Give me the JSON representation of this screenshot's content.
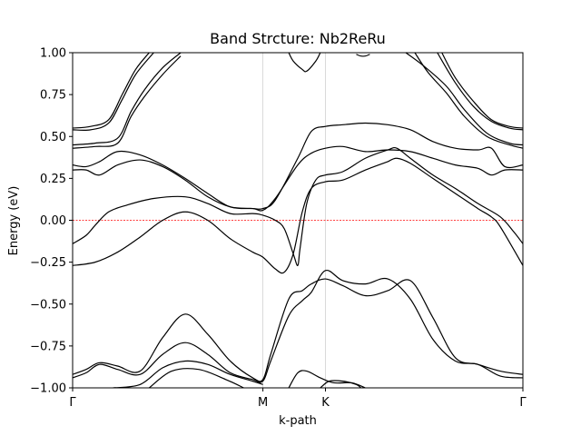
{
  "chart_data": {
    "type": "line",
    "title": "Band Strcture: Nb2ReRu",
    "xlabel": "k-path",
    "ylabel": "Energy (eV)",
    "xlim": [
      0,
      1
    ],
    "ylim": [
      -1.0,
      1.0
    ],
    "yticks": [
      -1.0,
      -0.75,
      -0.5,
      -0.25,
      0.0,
      0.25,
      0.5,
      0.75,
      1.0
    ],
    "ytick_labels": [
      "−1.00",
      "−0.75",
      "−0.50",
      "−0.25",
      "0.00",
      "0.25",
      "0.50",
      "0.75",
      "1.00"
    ],
    "high_symmetry_points": [
      {
        "label": "Γ",
        "x": 0.0
      },
      {
        "label": "M",
        "x": 0.4226
      },
      {
        "label": "K",
        "x": 0.5615
      },
      {
        "label": "Γ",
        "x": 1.0
      }
    ],
    "fermi_level": 0.0,
    "series": [
      {
        "values": [
          [
            0.0,
            -0.27
          ],
          [
            0.05,
            -0.25
          ],
          [
            0.1,
            -0.19
          ],
          [
            0.15,
            -0.1
          ],
          [
            0.2,
            0.0
          ],
          [
            0.25,
            0.05
          ],
          [
            0.3,
            0.0
          ],
          [
            0.35,
            -0.11
          ],
          [
            0.4,
            -0.19
          ],
          [
            0.4226,
            -0.22
          ],
          [
            0.45,
            -0.29
          ],
          [
            0.47,
            -0.31
          ],
          [
            0.49,
            -0.2
          ],
          [
            0.51,
            0.05
          ],
          [
            0.53,
            0.19
          ],
          [
            0.5615,
            0.23
          ],
          [
            0.6,
            0.24
          ],
          [
            0.65,
            0.3
          ],
          [
            0.7,
            0.35
          ],
          [
            0.7,
            0.35
          ],
          [
            0.72,
            0.37
          ],
          [
            0.75,
            0.34
          ],
          [
            0.8,
            0.25
          ],
          [
            0.85,
            0.16
          ],
          [
            0.9,
            0.07
          ],
          [
            0.93,
            0.02
          ],
          [
            0.95,
            -0.04
          ],
          [
            1.0,
            -0.27
          ]
        ]
      },
      {
        "values": [
          [
            0.0,
            -0.14
          ],
          [
            0.03,
            -0.09
          ],
          [
            0.05,
            -0.03
          ],
          [
            0.08,
            0.05
          ],
          [
            0.12,
            0.09
          ],
          [
            0.18,
            0.13
          ],
          [
            0.25,
            0.14
          ],
          [
            0.3,
            0.1
          ],
          [
            0.35,
            0.04
          ],
          [
            0.4,
            0.04
          ],
          [
            0.4226,
            0.03
          ],
          [
            0.45,
            0.0
          ],
          [
            0.47,
            -0.05
          ],
          [
            0.49,
            -0.2
          ],
          [
            0.5,
            -0.27
          ],
          [
            0.505,
            -0.17
          ],
          [
            0.52,
            0.1
          ],
          [
            0.54,
            0.24
          ],
          [
            0.5615,
            0.27
          ],
          [
            0.6,
            0.29
          ],
          [
            0.65,
            0.37
          ],
          [
            0.7,
            0.42
          ],
          [
            0.72,
            0.43
          ],
          [
            0.75,
            0.37
          ],
          [
            0.8,
            0.27
          ],
          [
            0.85,
            0.19
          ],
          [
            0.9,
            0.1
          ],
          [
            0.95,
            0.02
          ],
          [
            0.98,
            -0.07
          ],
          [
            1.0,
            -0.14
          ]
        ]
      },
      {
        "values": [
          [
            0.0,
            0.3
          ],
          [
            0.03,
            0.3
          ],
          [
            0.06,
            0.27
          ],
          [
            0.1,
            0.33
          ],
          [
            0.15,
            0.36
          ],
          [
            0.2,
            0.32
          ],
          [
            0.25,
            0.24
          ],
          [
            0.3,
            0.14
          ],
          [
            0.35,
            0.08
          ],
          [
            0.4,
            0.07
          ],
          [
            0.4226,
            0.06
          ],
          [
            0.45,
            0.13
          ],
          [
            0.5,
            0.33
          ],
          [
            0.53,
            0.4
          ],
          [
            0.5615,
            0.43
          ],
          [
            0.6,
            0.44
          ],
          [
            0.65,
            0.41
          ],
          [
            0.7,
            0.42
          ],
          [
            0.75,
            0.41
          ],
          [
            0.8,
            0.37
          ],
          [
            0.85,
            0.33
          ],
          [
            0.9,
            0.31
          ],
          [
            0.93,
            0.27
          ],
          [
            0.96,
            0.3
          ],
          [
            1.0,
            0.3
          ]
        ]
      },
      {
        "values": [
          [
            0.0,
            0.33
          ],
          [
            0.03,
            0.32
          ],
          [
            0.06,
            0.35
          ],
          [
            0.1,
            0.41
          ],
          [
            0.15,
            0.39
          ],
          [
            0.2,
            0.33
          ],
          [
            0.25,
            0.25
          ],
          [
            0.3,
            0.16
          ],
          [
            0.35,
            0.08
          ],
          [
            0.4,
            0.07
          ],
          [
            0.4226,
            0.07
          ],
          [
            0.45,
            0.12
          ],
          [
            0.5,
            0.37
          ],
          [
            0.53,
            0.53
          ],
          [
            0.5615,
            0.56
          ],
          [
            0.6,
            0.57
          ],
          [
            0.65,
            0.58
          ],
          [
            0.7,
            0.57
          ],
          [
            0.75,
            0.54
          ],
          [
            0.8,
            0.47
          ],
          [
            0.85,
            0.43
          ],
          [
            0.9,
            0.42
          ],
          [
            0.93,
            0.43
          ],
          [
            0.96,
            0.32
          ],
          [
            1.0,
            0.33
          ]
        ]
      },
      {
        "values": [
          [
            0.0,
            0.45
          ],
          [
            0.05,
            0.46
          ],
          [
            0.1,
            0.49
          ],
          [
            0.13,
            0.65
          ],
          [
            0.16,
            0.78
          ],
          [
            0.2,
            0.91
          ],
          [
            0.24,
            1.0
          ]
        ]
      },
      {
        "values": [
          [
            0.0,
            0.43
          ],
          [
            0.05,
            0.44
          ],
          [
            0.1,
            0.46
          ],
          [
            0.13,
            0.62
          ],
          [
            0.16,
            0.74
          ],
          [
            0.2,
            0.87
          ],
          [
            0.24,
            0.98
          ]
        ]
      },
      {
        "values": [
          [
            0.0,
            0.55
          ],
          [
            0.04,
            0.56
          ],
          [
            0.08,
            0.6
          ],
          [
            0.11,
            0.75
          ],
          [
            0.14,
            0.9
          ],
          [
            0.17,
            1.0
          ]
        ]
      },
      {
        "values": [
          [
            0.0,
            0.54
          ],
          [
            0.04,
            0.54
          ],
          [
            0.08,
            0.58
          ],
          [
            0.11,
            0.72
          ],
          [
            0.14,
            0.87
          ],
          [
            0.18,
            1.0
          ]
        ]
      },
      {
        "values": [
          [
            1.0,
            0.45
          ],
          [
            0.97,
            0.46
          ],
          [
            0.92,
            0.52
          ],
          [
            0.87,
            0.66
          ],
          [
            0.83,
            0.8
          ],
          [
            0.78,
            0.92
          ],
          [
            0.74,
            1.0
          ]
        ]
      },
      {
        "values": [
          [
            1.0,
            0.43
          ],
          [
            0.97,
            0.45
          ],
          [
            0.92,
            0.5
          ],
          [
            0.87,
            0.62
          ],
          [
            0.83,
            0.76
          ],
          [
            0.79,
            0.88
          ],
          [
            0.76,
            1.0
          ]
        ]
      },
      {
        "values": [
          [
            1.0,
            0.55
          ],
          [
            0.97,
            0.56
          ],
          [
            0.93,
            0.6
          ],
          [
            0.89,
            0.71
          ],
          [
            0.85,
            0.85
          ],
          [
            0.82,
            1.0
          ]
        ]
      },
      {
        "values": [
          [
            1.0,
            0.54
          ],
          [
            0.97,
            0.55
          ],
          [
            0.93,
            0.59
          ],
          [
            0.89,
            0.68
          ],
          [
            0.85,
            0.82
          ],
          [
            0.81,
            1.0
          ]
        ]
      },
      {
        "values": [
          [
            0.48,
            1.0
          ],
          [
            0.49,
            0.95
          ],
          [
            0.51,
            0.9
          ],
          [
            0.52,
            0.89
          ],
          [
            0.54,
            0.95
          ],
          [
            0.55,
            1.0
          ]
        ]
      },
      {
        "values": [
          [
            0.63,
            0.99
          ],
          [
            0.64,
            0.98
          ],
          [
            0.65,
            0.98
          ],
          [
            0.66,
            0.99
          ]
        ]
      },
      {
        "values": [
          [
            0.0,
            -0.92
          ],
          [
            0.03,
            -0.89
          ],
          [
            0.06,
            -0.85
          ],
          [
            0.1,
            -0.87
          ],
          [
            0.15,
            -0.9
          ],
          [
            0.2,
            -0.7
          ],
          [
            0.25,
            -0.56
          ],
          [
            0.3,
            -0.68
          ],
          [
            0.35,
            -0.84
          ],
          [
            0.4,
            -0.94
          ],
          [
            0.4226,
            -0.95
          ],
          [
            0.44,
            -0.8
          ],
          [
            0.48,
            -0.47
          ],
          [
            0.51,
            -0.42
          ],
          [
            0.53,
            -0.38
          ],
          [
            0.5615,
            -0.35
          ],
          [
            0.6,
            -0.39
          ],
          [
            0.65,
            -0.45
          ],
          [
            0.7,
            -0.42
          ],
          [
            0.75,
            -0.36
          ],
          [
            0.8,
            -0.58
          ],
          [
            0.85,
            -0.82
          ],
          [
            0.9,
            -0.86
          ],
          [
            0.95,
            -0.9
          ],
          [
            1.0,
            -0.92
          ]
        ]
      },
      {
        "values": [
          [
            0.0,
            -0.94
          ],
          [
            0.03,
            -0.91
          ],
          [
            0.06,
            -0.86
          ],
          [
            0.1,
            -0.89
          ],
          [
            0.15,
            -0.92
          ],
          [
            0.2,
            -0.8
          ],
          [
            0.25,
            -0.73
          ],
          [
            0.3,
            -0.8
          ],
          [
            0.35,
            -0.91
          ],
          [
            0.4,
            -0.95
          ],
          [
            0.4226,
            -0.96
          ],
          [
            0.44,
            -0.84
          ],
          [
            0.48,
            -0.57
          ],
          [
            0.51,
            -0.48
          ],
          [
            0.53,
            -0.43
          ],
          [
            0.5615,
            -0.3
          ],
          [
            0.6,
            -0.36
          ],
          [
            0.65,
            -0.38
          ],
          [
            0.7,
            -0.35
          ],
          [
            0.75,
            -0.47
          ],
          [
            0.8,
            -0.71
          ],
          [
            0.85,
            -0.84
          ],
          [
            0.9,
            -0.86
          ],
          [
            0.95,
            -0.93
          ],
          [
            1.0,
            -0.94
          ]
        ]
      },
      {
        "values": [
          [
            0.09,
            -1.0
          ],
          [
            0.15,
            -0.98
          ],
          [
            0.2,
            -0.88
          ],
          [
            0.25,
            -0.84
          ],
          [
            0.3,
            -0.86
          ],
          [
            0.35,
            -0.92
          ],
          [
            0.4,
            -0.96
          ],
          [
            0.4226,
            -0.98
          ]
        ]
      },
      {
        "values": [
          [
            0.17,
            -1.0
          ],
          [
            0.22,
            -0.9
          ],
          [
            0.28,
            -0.89
          ],
          [
            0.34,
            -0.95
          ],
          [
            0.38,
            -1.0
          ]
        ]
      },
      {
        "values": [
          [
            0.48,
            -1.0
          ],
          [
            0.5,
            -0.91
          ],
          [
            0.52,
            -0.9
          ],
          [
            0.55,
            -0.94
          ],
          [
            0.58,
            -0.97
          ],
          [
            0.62,
            -0.97
          ],
          [
            0.65,
            -1.0
          ]
        ]
      },
      {
        "values": [
          [
            0.55,
            -1.0
          ],
          [
            0.57,
            -0.96
          ],
          [
            0.6,
            -0.96
          ],
          [
            0.63,
            -0.98
          ],
          [
            0.64,
            -1.0
          ]
        ]
      }
    ]
  }
}
